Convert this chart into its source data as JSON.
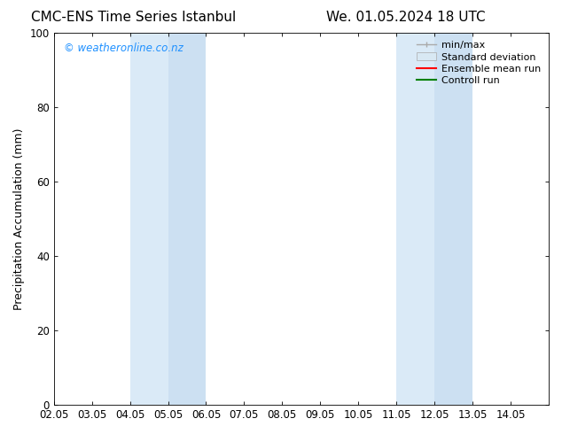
{
  "title_left": "CMC-ENS Time Series Istanbul",
  "title_right": "We. 01.05.2024 18 UTC",
  "ylabel": "Precipitation Accumulation (mm)",
  "xlim": [
    0,
    13
  ],
  "ylim": [
    0,
    100
  ],
  "yticks": [
    0,
    20,
    40,
    60,
    80,
    100
  ],
  "xtick_labels": [
    "02.05",
    "03.05",
    "04.05",
    "05.05",
    "06.05",
    "07.05",
    "08.05",
    "09.05",
    "10.05",
    "11.05",
    "12.05",
    "13.05",
    "14.05"
  ],
  "shaded_regions": [
    {
      "xmin": 2.0,
      "xmax": 3.0,
      "color": "#daeaf7"
    },
    {
      "xmin": 3.0,
      "xmax": 4.0,
      "color": "#cce0f2"
    },
    {
      "xmin": 9.0,
      "xmax": 10.0,
      "color": "#daeaf7"
    },
    {
      "xmin": 10.0,
      "xmax": 11.0,
      "color": "#cce0f2"
    }
  ],
  "legend_labels": [
    "min/max",
    "Standard deviation",
    "Ensemble mean run",
    "Controll run"
  ],
  "legend_colors_line": [
    "#aaaaaa",
    "#bbbbbb",
    "#ff0000",
    "#008000"
  ],
  "legend_colors_fill": [
    "#dddddd",
    "#cccccc",
    null,
    null
  ],
  "watermark": "© weatheronline.co.nz",
  "watermark_color": "#1e90ff",
  "background_color": "#ffffff",
  "plot_bg_color": "#ffffff",
  "title_fontsize": 11,
  "axis_fontsize": 9,
  "tick_fontsize": 8.5,
  "legend_fontsize": 8,
  "watermark_fontsize": 8.5
}
